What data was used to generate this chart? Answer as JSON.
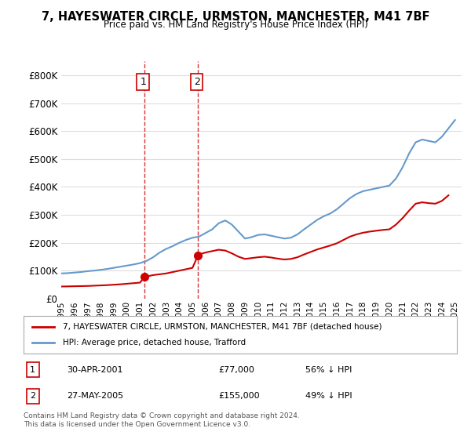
{
  "title": "7, HAYESWATER CIRCLE, URMSTON, MANCHESTER, M41 7BF",
  "subtitle": "Price paid vs. HM Land Registry's House Price Index (HPI)",
  "legend_label_red": "7, HAYESWATER CIRCLE, URMSTON, MANCHESTER, M41 7BF (detached house)",
  "legend_label_blue": "HPI: Average price, detached house, Trafford",
  "footnote": "Contains HM Land Registry data © Crown copyright and database right 2024.\nThis data is licensed under the Open Government Licence v3.0.",
  "transaction1_label": "1",
  "transaction1_date": "30-APR-2001",
  "transaction1_price": "£77,000",
  "transaction1_pct": "56% ↓ HPI",
  "transaction2_label": "2",
  "transaction2_date": "27-MAY-2005",
  "transaction2_price": "£155,000",
  "transaction2_pct": "49% ↓ HPI",
  "vline1_x": 2001.33,
  "vline2_x": 2005.42,
  "marker1_red_x": 2001.33,
  "marker1_red_y": 77000,
  "marker2_red_x": 2005.42,
  "marker2_red_y": 155000,
  "ylim": [
    0,
    850000
  ],
  "xlim_start": 1995.0,
  "xlim_end": 2025.5,
  "background_color": "#ffffff",
  "grid_color": "#dddddd",
  "red_color": "#cc0000",
  "blue_color": "#6699cc",
  "hpi_years": [
    1995,
    1995.5,
    1996,
    1996.5,
    1997,
    1997.5,
    1998,
    1998.5,
    1999,
    1999.5,
    2000,
    2000.5,
    2001,
    2001.5,
    2002,
    2002.5,
    2003,
    2003.5,
    2004,
    2004.5,
    2005,
    2005.5,
    2006,
    2006.5,
    2007,
    2007.5,
    2008,
    2008.5,
    2009,
    2009.5,
    2010,
    2010.5,
    2011,
    2011.5,
    2012,
    2012.5,
    2013,
    2013.5,
    2014,
    2014.5,
    2015,
    2015.5,
    2016,
    2016.5,
    2017,
    2017.5,
    2018,
    2018.5,
    2019,
    2019.5,
    2020,
    2020.5,
    2021,
    2021.5,
    2022,
    2022.5,
    2023,
    2023.5,
    2024,
    2024.5,
    2025
  ],
  "hpi_values": [
    90000,
    91000,
    93000,
    95000,
    98000,
    100000,
    103000,
    106000,
    110000,
    114000,
    118000,
    122000,
    127000,
    135000,
    148000,
    165000,
    178000,
    188000,
    200000,
    210000,
    218000,
    222000,
    235000,
    248000,
    270000,
    280000,
    265000,
    240000,
    215000,
    220000,
    228000,
    230000,
    225000,
    220000,
    215000,
    218000,
    230000,
    248000,
    265000,
    282000,
    295000,
    305000,
    320000,
    340000,
    360000,
    375000,
    385000,
    390000,
    395000,
    400000,
    405000,
    430000,
    470000,
    520000,
    560000,
    570000,
    565000,
    560000,
    580000,
    610000,
    640000
  ],
  "red_years": [
    1995,
    1995.5,
    1996,
    1996.5,
    1997,
    1997.5,
    1998,
    1998.5,
    1999,
    1999.5,
    2000,
    2000.5,
    2001,
    2001.33,
    2001.5,
    2002,
    2002.5,
    2003,
    2003.5,
    2004,
    2004.5,
    2005,
    2005.42,
    2005.5,
    2006,
    2006.5,
    2007,
    2007.5,
    2008,
    2008.5,
    2009,
    2009.5,
    2010,
    2010.5,
    2011,
    2011.5,
    2012,
    2012.5,
    2013,
    2013.5,
    2014,
    2014.5,
    2015,
    2015.5,
    2016,
    2016.5,
    2017,
    2017.5,
    2018,
    2018.5,
    2019,
    2019.5,
    2020,
    2020.5,
    2021,
    2021.5,
    2022,
    2022.5,
    2023,
    2023.5,
    2024,
    2024.5
  ],
  "red_values": [
    43000,
    43500,
    44000,
    44500,
    45000,
    46000,
    47000,
    48000,
    49500,
    51000,
    53000,
    55000,
    57000,
    77000,
    79000,
    84000,
    87000,
    90000,
    95000,
    100000,
    105000,
    110000,
    155000,
    158000,
    165000,
    170000,
    175000,
    172000,
    162000,
    150000,
    142000,
    145000,
    148000,
    150000,
    147000,
    143000,
    140000,
    142000,
    148000,
    158000,
    167000,
    176000,
    183000,
    190000,
    198000,
    210000,
    222000,
    230000,
    236000,
    240000,
    243000,
    246000,
    248000,
    265000,
    288000,
    315000,
    340000,
    345000,
    342000,
    340000,
    350000,
    370000
  ]
}
